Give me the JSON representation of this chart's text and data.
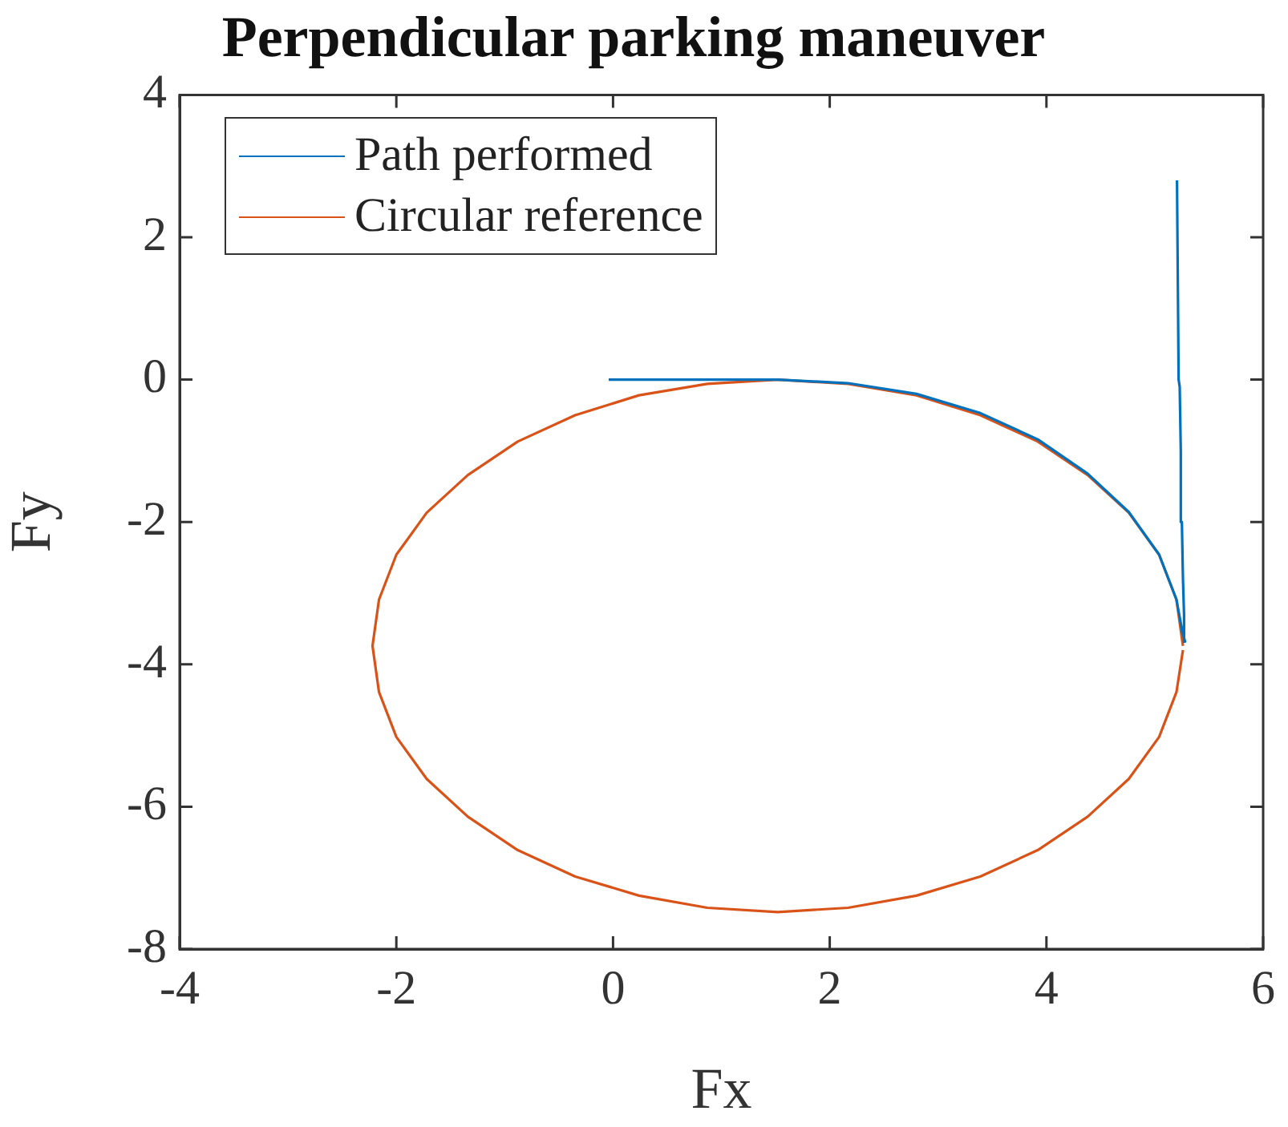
{
  "chart_data": {
    "type": "line",
    "title": "Perpendicular parking maneuver",
    "xlabel": "Fx",
    "ylabel": "Fy",
    "xlim": [
      -4,
      6
    ],
    "xticks": [
      -4,
      -2,
      0,
      2,
      4,
      6
    ],
    "ylim": [
      -8,
      4
    ],
    "yticks": [
      -8,
      -6,
      -4,
      -2,
      0,
      2,
      4
    ],
    "grid": false,
    "legend": "top left",
    "marker": "none",
    "line_style": "solid",
    "series": [
      {
        "name": "Path performed",
        "color": "#0072bd",
        "x": [
          -0.04,
          0.5,
          1.0,
          1.52,
          2.17,
          2.8,
          3.39,
          3.92,
          4.38,
          4.76,
          5.04,
          5.2,
          5.255,
          5.28,
          5.27,
          5.26,
          5.25,
          5.24,
          5.23,
          5.22,
          5.205
        ],
        "values": [
          0,
          0,
          0,
          0,
          -0.05,
          -0.2,
          -0.47,
          -0.84,
          -1.32,
          -1.86,
          -2.46,
          -3.09,
          -3.55,
          -3.68,
          -3.3,
          -2.8,
          -2,
          -1,
          -0.1,
          0,
          2.8
        ]
      },
      {
        "name": "Circular reference",
        "color": "#d95319",
        "x": [
          5.26,
          5.2,
          5.04,
          4.76,
          4.38,
          3.92,
          3.39,
          2.8,
          2.17,
          1.52,
          0.87,
          0.24,
          -0.35,
          -0.88,
          -1.34,
          -1.72,
          -2.0,
          -2.16,
          -2.22,
          -2.16,
          -2.0,
          -1.72,
          -1.34,
          -0.88,
          -0.35,
          0.24,
          0.87,
          1.52,
          2.17,
          2.8,
          3.39,
          3.92,
          4.38,
          4.76,
          5.04,
          5.2,
          5.26
        ],
        "values": [
          -3.74,
          -3.09,
          -2.46,
          -1.87,
          -1.34,
          -0.87,
          -0.5,
          -0.22,
          -0.06,
          0,
          -0.06,
          -0.22,
          -0.5,
          -0.87,
          -1.34,
          -1.87,
          -2.46,
          -3.09,
          -3.74,
          -4.39,
          -5.02,
          -5.61,
          -6.14,
          -6.61,
          -6.98,
          -7.25,
          -7.42,
          -7.48,
          -7.42,
          -7.25,
          -6.98,
          -6.61,
          -6.14,
          -5.61,
          -5.02,
          -4.39,
          -3.8
        ]
      }
    ]
  }
}
